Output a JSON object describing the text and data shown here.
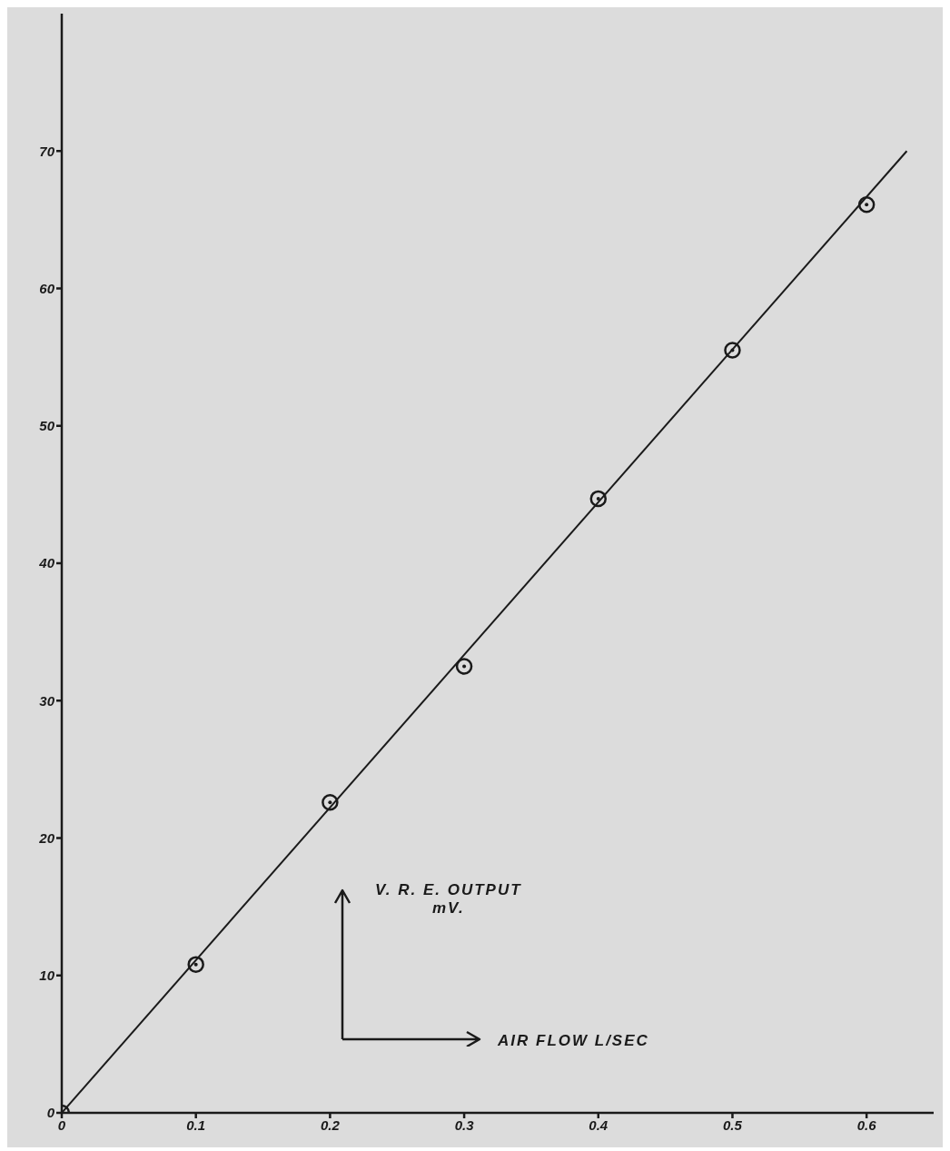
{
  "chart_data": {
    "type": "scatter",
    "xlabel": "AIR FLOW L/SEC",
    "ylabel": "V. R. E. OUTPUT\nmV.",
    "x": [
      0,
      0.1,
      0.2,
      0.3,
      0.4,
      0.5,
      0.6
    ],
    "series": [
      {
        "color": "#1a1a1a",
        "marker": "circle",
        "values": [
          0,
          10.8,
          22.6,
          32.5,
          44.7,
          55.5,
          66.1
        ]
      },
      {
        "type": "line",
        "color": "#1a1a1a",
        "marker": "none",
        "line_style": "solid",
        "x": [
          0,
          0.63
        ],
        "values": [
          0,
          70
        ]
      }
    ],
    "xlim": [
      0,
      0.65
    ],
    "xticks": [
      0,
      0.1,
      0.2,
      0.3,
      0.4,
      0.5,
      0.6
    ],
    "ylim": [
      0,
      80
    ],
    "yticks": [
      0,
      10,
      20,
      30,
      40,
      50,
      60,
      70
    ],
    "grid": false,
    "legend": false
  }
}
